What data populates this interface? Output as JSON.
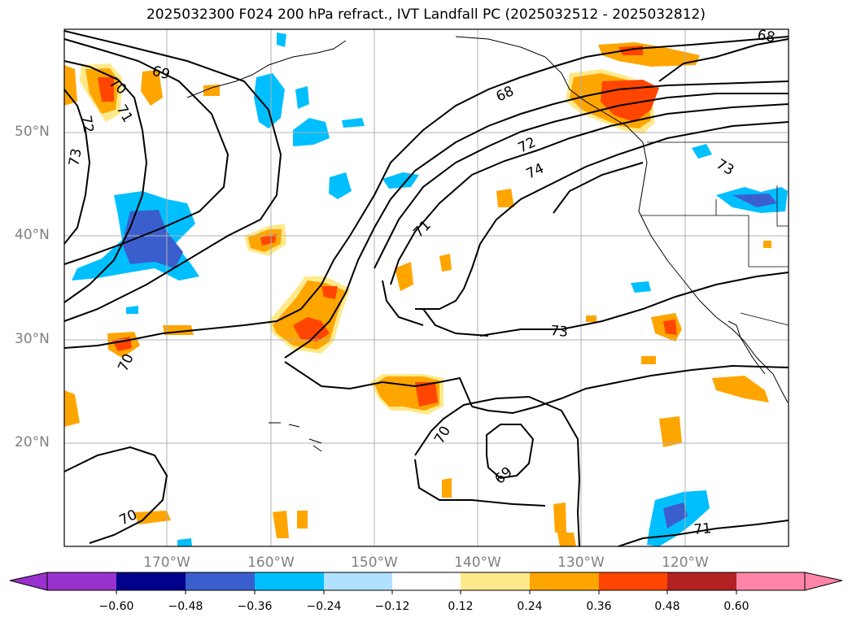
{
  "title": "2025032300 F024 200 hPa refract., IVT Landfall PC (2025032512 - 2025032812)",
  "lat_labels": [
    "50°N",
    "40°N",
    "30°N",
    "20°N"
  ],
  "lon_labels": [
    "170°W",
    "160°W",
    "150°W",
    "140°W",
    "130°W",
    "120°W"
  ],
  "contour_labels": [
    "69",
    "70",
    "71",
    "72",
    "73",
    "73",
    "68",
    "72",
    "74",
    "71",
    "73",
    "70",
    "70",
    "69",
    "70",
    "71",
    "68"
  ],
  "colorbar": {
    "ticks": [
      "−0.60",
      "−0.48",
      "−0.36",
      "−0.24",
      "−0.12",
      "0.12",
      "0.24",
      "0.36",
      "0.48",
      "0.60"
    ],
    "colors": [
      "#9932cc",
      "#00008b",
      "#3a5fcd",
      "#00bfff",
      "#b0e2ff",
      "#ffffff",
      "#ffe98a",
      "#ffa500",
      "#ff4500",
      "#b22222",
      "#ff85a8"
    ]
  }
}
